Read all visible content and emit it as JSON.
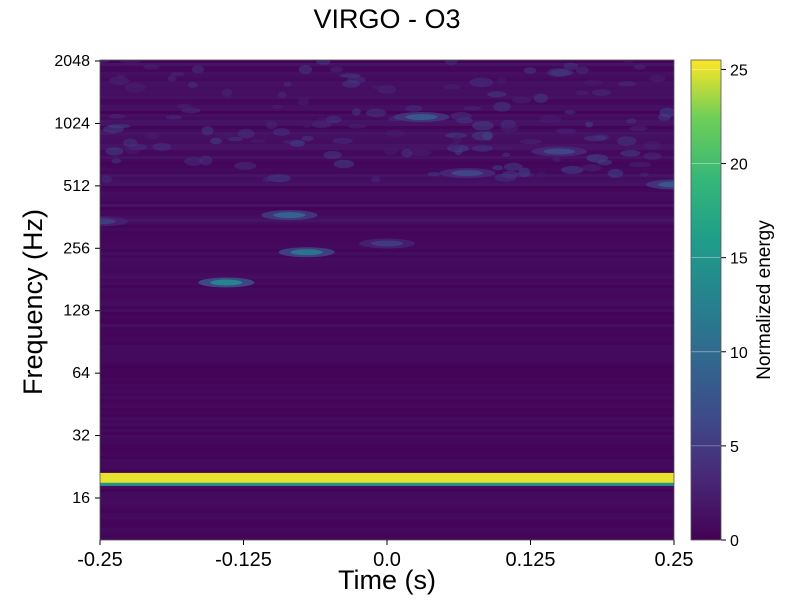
{
  "chart_data": {
    "type": "heatmap",
    "title": "VIRGO - O3",
    "xlabel": "Time (s)",
    "ylabel": "Frequency (Hz)",
    "colorbar_label": "Normalized energy",
    "colormap": "viridis",
    "xlim": [
      -0.25,
      0.25
    ],
    "ylim": [
      10,
      2048
    ],
    "y_scale": "log2",
    "x_ticks": [
      -0.25,
      -0.125,
      0.0,
      0.125,
      0.25
    ],
    "x_tick_labels": [
      "-0.25",
      "-0.125",
      "0.0",
      "0.125",
      "0.25"
    ],
    "y_ticks": [
      16,
      32,
      64,
      128,
      256,
      512,
      1024,
      2048
    ],
    "y_tick_labels": [
      "16",
      "32",
      "64",
      "128",
      "256",
      "512",
      "1024",
      "2048"
    ],
    "colorbar_range": [
      0,
      25.5
    ],
    "colorbar_ticks": [
      0,
      5,
      10,
      15,
      20,
      25
    ],
    "colorbar_tick_labels": [
      "0",
      "5",
      "10",
      "15",
      "20",
      "25"
    ],
    "features": [
      {
        "kind": "line",
        "freq_hz": 20,
        "t_start": -0.25,
        "t_end": 0.25,
        "energy": 25
      },
      {
        "kind": "blob",
        "t": -0.14,
        "freq_hz": 175,
        "energy": 13
      },
      {
        "kind": "blob",
        "t": -0.07,
        "freq_hz": 245,
        "energy": 11
      },
      {
        "kind": "blob",
        "t": -0.085,
        "freq_hz": 370,
        "energy": 9
      },
      {
        "kind": "blob",
        "t": 0.03,
        "freq_hz": 1100,
        "energy": 8
      },
      {
        "kind": "blob",
        "t": 0.25,
        "freq_hz": 520,
        "energy": 8
      },
      {
        "kind": "blob",
        "t": 0.15,
        "freq_hz": 750,
        "energy": 6
      },
      {
        "kind": "blob",
        "t": 0.07,
        "freq_hz": 590,
        "energy": 6
      },
      {
        "kind": "blob",
        "t": -0.25,
        "freq_hz": 345,
        "energy": 5
      },
      {
        "kind": "blob",
        "t": 0.0,
        "freq_hz": 270,
        "energy": 5
      }
    ]
  }
}
